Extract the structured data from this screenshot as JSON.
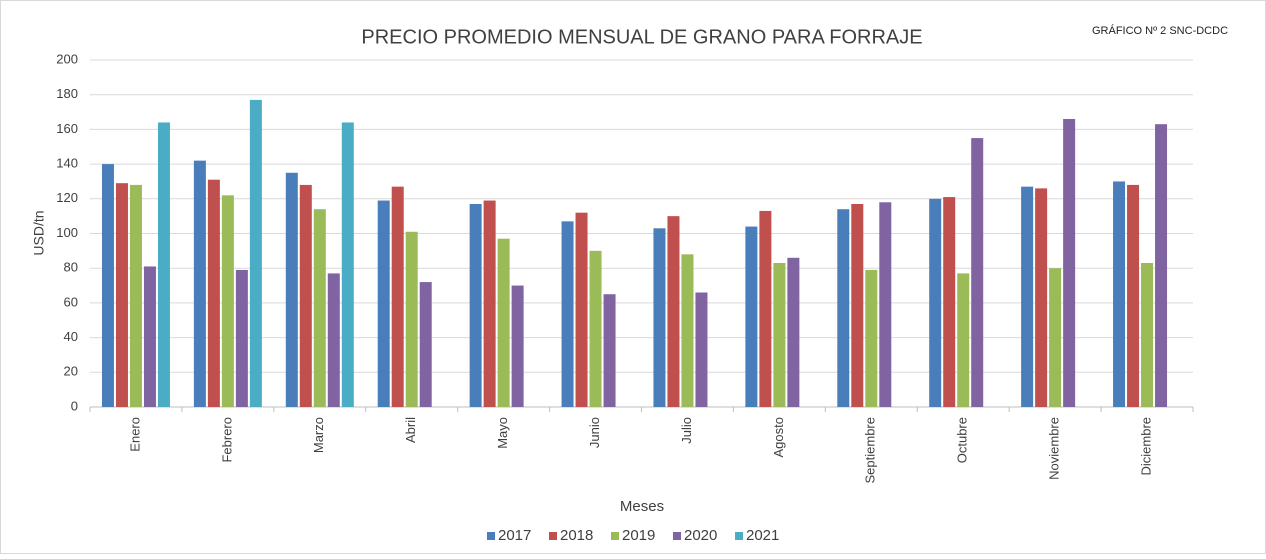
{
  "chart_data": {
    "type": "bar",
    "title": "PRECIO PROMEDIO MENSUAL DE GRANO PARA FORRAJE",
    "annotation": "GRÁFICO Nº 2 SNC-DCDC",
    "x_label": "Meses",
    "y_label": "USD/tn",
    "categories": [
      "Enero",
      "Febrero",
      "Marzo",
      "Abril",
      "Mayo",
      "Junio",
      "Julio",
      "Agosto",
      "Septiembre",
      "Octubre",
      "Noviembre",
      "Diciembre"
    ],
    "series": [
      {
        "name": "2017",
        "color": "#4a7ebb",
        "values": [
          140,
          142,
          135,
          119,
          117,
          107,
          103,
          104,
          114,
          120,
          127,
          130
        ]
      },
      {
        "name": "2018",
        "color": "#c0504d",
        "values": [
          129,
          131,
          128,
          127,
          119,
          112,
          110,
          113,
          117,
          121,
          126,
          128
        ]
      },
      {
        "name": "2019",
        "color": "#9bbb59",
        "values": [
          128,
          122,
          114,
          101,
          97,
          90,
          88,
          83,
          79,
          77,
          80,
          83
        ]
      },
      {
        "name": "2020",
        "color": "#8064a2",
        "values": [
          81,
          79,
          77,
          72,
          70,
          65,
          66,
          86,
          118,
          155,
          166,
          163
        ]
      },
      {
        "name": "2021",
        "color": "#4bacc6",
        "values": [
          164,
          177,
          164,
          null,
          null,
          null,
          null,
          null,
          null,
          null,
          null,
          null
        ]
      }
    ],
    "ylim": [
      0,
      200
    ],
    "yticks": [
      0,
      20,
      40,
      60,
      80,
      100,
      120,
      140,
      160,
      180,
      200
    ],
    "grid": true,
    "legend": "bottom"
  }
}
